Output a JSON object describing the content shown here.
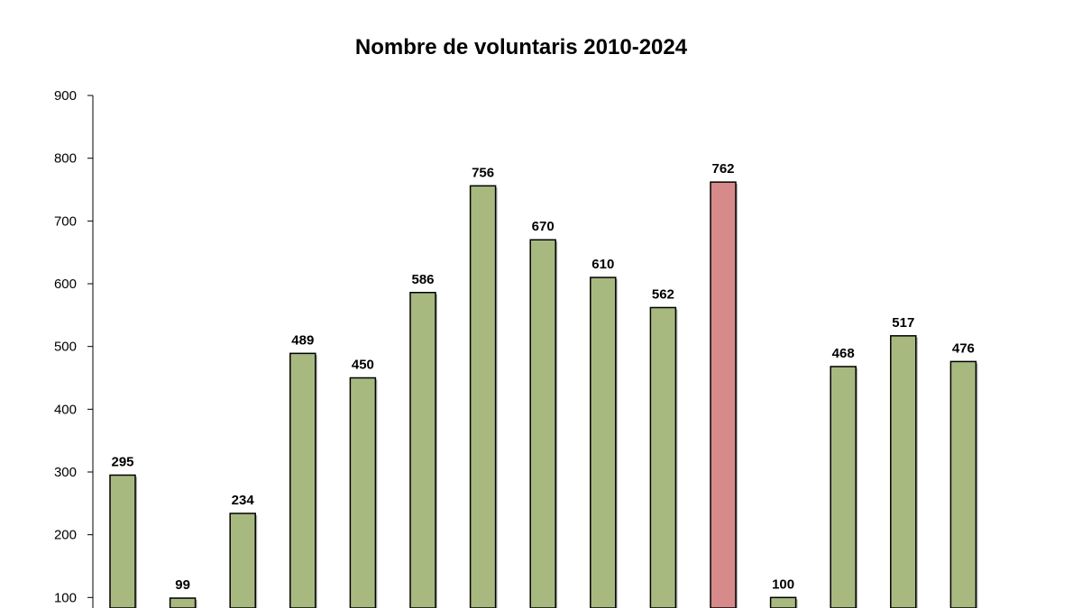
{
  "chart_data": {
    "type": "bar",
    "title": "Nombre de voluntaris 2010-2024",
    "values": [
      295,
      99,
      234,
      489,
      450,
      586,
      756,
      670,
      610,
      562,
      762,
      100,
      468,
      517,
      476
    ],
    "highlight_index": 10,
    "colors": {
      "bar": "#a8b980",
      "highlight": "#d68a8a",
      "outline": "#000000"
    },
    "yticks": [
      100,
      200,
      300,
      400,
      500,
      600,
      700,
      800,
      900
    ],
    "ylim": [
      0,
      900
    ],
    "grid": false,
    "legend": "none"
  }
}
